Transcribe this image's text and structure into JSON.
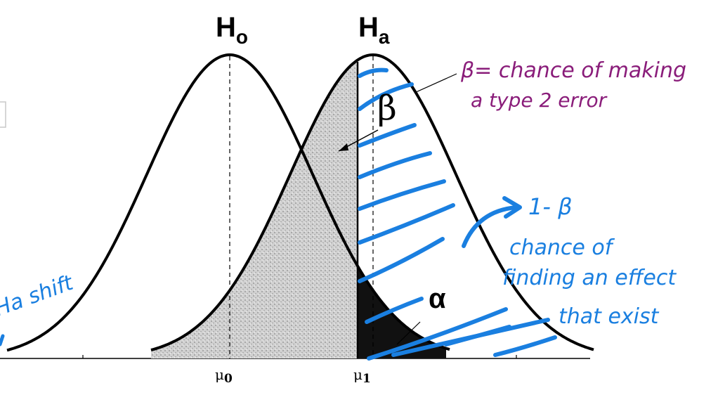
{
  "labels": {
    "h0_main": "H",
    "h0_sub": "o",
    "ha_main": "H",
    "ha_sub": "a",
    "mu0_main": "μ",
    "mu0_sub": "0",
    "mu1_main": "μ",
    "mu1_sub": "1",
    "beta": "β",
    "alpha": "α"
  },
  "annotations": {
    "beta_line1": "β= chance of making",
    "beta_line2": "a type 2 error",
    "power_label": "1- β",
    "power_line1": "chance of",
    "power_line2": "finding an effect",
    "power_line3": "that exist",
    "left_note": "Ha shift"
  },
  "colors": {
    "ink": "#000000",
    "blue_ink": "#1a7fe0",
    "purple_ink": "#8a1d7a",
    "beta_fill": "#cfcfcf",
    "alpha_fill": "#111111"
  }
}
